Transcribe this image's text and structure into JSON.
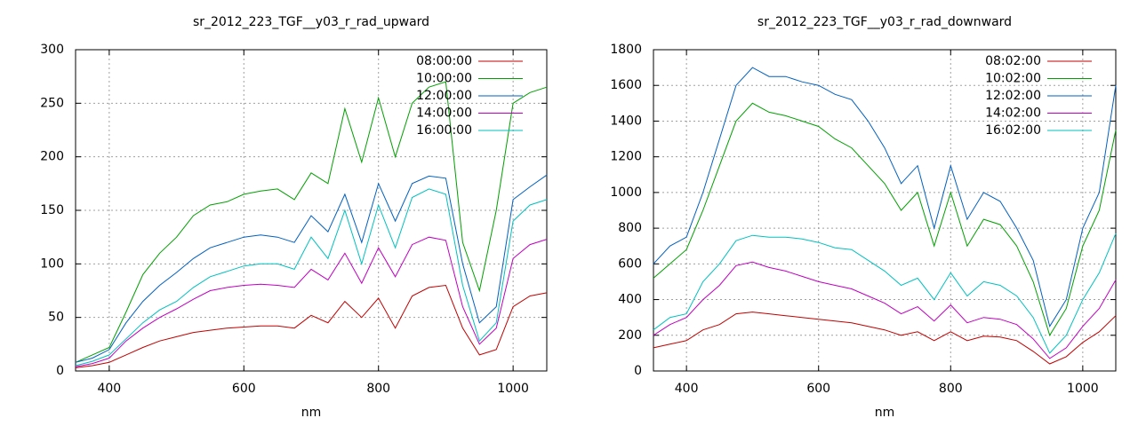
{
  "chart_data": [
    {
      "type": "line",
      "title": "sr_2012_223_TGF__y03_r_rad_upward",
      "x_label": "nm",
      "x": [
        350,
        375,
        400,
        425,
        450,
        475,
        500,
        525,
        550,
        575,
        600,
        625,
        650,
        675,
        700,
        725,
        750,
        775,
        800,
        825,
        850,
        875,
        900,
        925,
        950,
        975,
        1000,
        1025,
        1050
      ],
      "xlim": [
        350,
        1050
      ],
      "xticks": [
        400,
        600,
        800,
        1000
      ],
      "ylim": [
        0,
        300
      ],
      "yticks": [
        0,
        50,
        100,
        150,
        200,
        250,
        300
      ],
      "grid": true,
      "legend": "top-right",
      "series": [
        {
          "name": "08:00:00",
          "color": "#c00000",
          "values": [
            3,
            5,
            8,
            15,
            22,
            28,
            32,
            36,
            38,
            40,
            41,
            42,
            42,
            40,
            52,
            45,
            65,
            50,
            68,
            40,
            70,
            78,
            80,
            40,
            15,
            20,
            60,
            70,
            73
          ]
        },
        {
          "name": "10:00:00",
          "color": "#00a000",
          "values": [
            8,
            15,
            22,
            55,
            90,
            110,
            125,
            145,
            155,
            158,
            165,
            168,
            170,
            160,
            185,
            175,
            245,
            195,
            255,
            200,
            250,
            265,
            270,
            120,
            75,
            150,
            250,
            260,
            265
          ]
        },
        {
          "name": "12:00:00",
          "color": "#0060c0",
          "values": [
            8,
            12,
            20,
            45,
            65,
            80,
            92,
            105,
            115,
            120,
            125,
            127,
            125,
            120,
            145,
            130,
            165,
            120,
            175,
            140,
            175,
            182,
            180,
            100,
            45,
            60,
            160,
            172,
            183
          ]
        },
        {
          "name": "14:00:00",
          "color": "#c000c0",
          "values": [
            4,
            7,
            12,
            28,
            40,
            50,
            58,
            67,
            75,
            78,
            80,
            81,
            80,
            78,
            95,
            85,
            110,
            82,
            115,
            88,
            118,
            125,
            122,
            60,
            25,
            40,
            105,
            118,
            123
          ]
        },
        {
          "name": "16:00:00",
          "color": "#00c0c0",
          "values": [
            5,
            9,
            15,
            30,
            45,
            57,
            65,
            78,
            88,
            93,
            98,
            100,
            100,
            95,
            125,
            105,
            150,
            100,
            155,
            115,
            162,
            170,
            165,
            80,
            28,
            45,
            140,
            155,
            160
          ]
        }
      ]
    },
    {
      "type": "line",
      "title": "sr_2012_223_TGF__y03_r_rad_downward",
      "x_label": "nm",
      "x": [
        350,
        375,
        400,
        425,
        450,
        475,
        500,
        525,
        550,
        575,
        600,
        625,
        650,
        675,
        700,
        725,
        750,
        775,
        800,
        825,
        850,
        875,
        900,
        925,
        950,
        975,
        1000,
        1025,
        1050
      ],
      "xlim": [
        350,
        1050
      ],
      "xticks": [
        400,
        600,
        800,
        1000
      ],
      "ylim": [
        0,
        1800
      ],
      "yticks": [
        0,
        200,
        400,
        600,
        800,
        1000,
        1200,
        1400,
        1600,
        1800
      ],
      "grid": true,
      "legend": "top-right",
      "series": [
        {
          "name": "08:02:00",
          "color": "#c00000",
          "values": [
            130,
            150,
            170,
            230,
            260,
            320,
            330,
            320,
            310,
            300,
            290,
            280,
            270,
            250,
            230,
            200,
            220,
            170,
            220,
            170,
            195,
            190,
            170,
            110,
            40,
            80,
            160,
            220,
            310
          ]
        },
        {
          "name": "10:02:00",
          "color": "#00a000",
          "values": [
            520,
            600,
            680,
            900,
            1150,
            1400,
            1500,
            1450,
            1430,
            1400,
            1370,
            1300,
            1250,
            1150,
            1050,
            900,
            1000,
            700,
            1000,
            700,
            850,
            820,
            700,
            500,
            200,
            350,
            700,
            900,
            1350
          ]
        },
        {
          "name": "12:02:00",
          "color": "#0060c0",
          "values": [
            600,
            700,
            750,
            1000,
            1300,
            1600,
            1700,
            1650,
            1650,
            1620,
            1600,
            1550,
            1520,
            1400,
            1250,
            1050,
            1150,
            800,
            1150,
            850,
            1000,
            950,
            800,
            620,
            250,
            400,
            800,
            1000,
            1600
          ]
        },
        {
          "name": "14:02:00",
          "color": "#c000c0",
          "values": [
            200,
            260,
            300,
            400,
            480,
            590,
            610,
            580,
            560,
            530,
            500,
            480,
            460,
            420,
            380,
            320,
            360,
            280,
            370,
            270,
            300,
            290,
            260,
            180,
            70,
            130,
            250,
            350,
            510
          ]
        },
        {
          "name": "16:02:00",
          "color": "#00c0c0",
          "values": [
            230,
            300,
            320,
            500,
            600,
            730,
            760,
            750,
            750,
            740,
            720,
            690,
            680,
            620,
            560,
            480,
            520,
            400,
            550,
            420,
            500,
            480,
            420,
            300,
            100,
            200,
            400,
            550,
            770
          ]
        }
      ]
    }
  ]
}
